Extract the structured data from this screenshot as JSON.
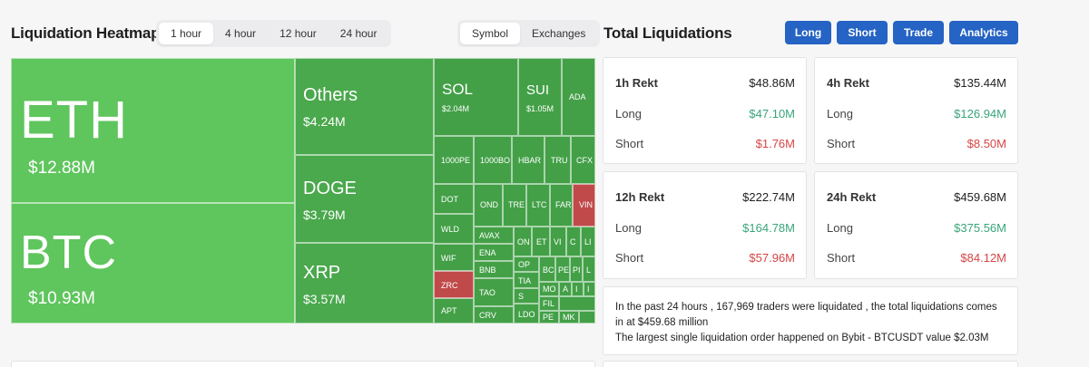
{
  "heatmap": {
    "title": "Liquidation Heatmap",
    "time_options": [
      "1 hour",
      "4 hour",
      "12 hour",
      "24 hour"
    ],
    "active_time": "1 hour",
    "view_options": [
      "Symbol",
      "Exchanges"
    ],
    "active_view": "Symbol",
    "tiles": {
      "eth": {
        "symbol": "ETH",
        "value": "$12.88M",
        "color": "#5fc55d"
      },
      "btc": {
        "symbol": "BTC",
        "value": "$10.93M",
        "color": "#5fc55d"
      },
      "others": {
        "symbol": "Others",
        "value": "$4.24M"
      },
      "doge": {
        "symbol": "DOGE",
        "value": "$3.79M"
      },
      "xrp": {
        "symbol": "XRP",
        "value": "$3.57M"
      },
      "sol": {
        "symbol": "SOL",
        "value": "$2.04M"
      },
      "sui": {
        "symbol": "SUI",
        "value": "$1.05M"
      },
      "ada": {
        "symbol": "ADA"
      },
      "pepe": {
        "symbol": "1000PE"
      },
      "bonk": {
        "symbol": "1000BO"
      },
      "hbar": {
        "symbol": "HBAR"
      },
      "trump": {
        "symbol": "TRU"
      },
      "cfx": {
        "symbol": "CFX"
      },
      "dot": {
        "symbol": "DOT"
      },
      "ondo": {
        "symbol": "OND"
      },
      "tre": {
        "symbol": "TRE"
      },
      "ltc": {
        "symbol": "LTC"
      },
      "far": {
        "symbol": "FAR"
      },
      "vin": {
        "symbol": "VIN"
      },
      "wld": {
        "symbol": "WLD"
      },
      "avax": {
        "symbol": "AVAX"
      },
      "on": {
        "symbol": "ON"
      },
      "et": {
        "symbol": "ET"
      },
      "vi": {
        "symbol": "VI"
      },
      "c1": {
        "symbol": "C"
      },
      "li": {
        "symbol": "LI"
      },
      "wif": {
        "symbol": "WIF"
      },
      "ena": {
        "symbol": "ENA"
      },
      "op": {
        "symbol": "OP"
      },
      "bc": {
        "symbol": "BC"
      },
      "pe": {
        "symbol": "PE"
      },
      "pi": {
        "symbol": "PI"
      },
      "l1": {
        "symbol": "L"
      },
      "zrc": {
        "symbol": "ZRC"
      },
      "bnb": {
        "symbol": "BNB"
      },
      "tia": {
        "symbol": "TIA"
      },
      "mo": {
        "symbol": "MO"
      },
      "a1": {
        "symbol": "A"
      },
      "i1": {
        "symbol": "I"
      },
      "i2": {
        "symbol": "I"
      },
      "tao": {
        "symbol": "TAO"
      },
      "s1": {
        "symbol": "S"
      },
      "fil": {
        "symbol": "FIL"
      },
      "apt": {
        "symbol": "APT"
      },
      "crv": {
        "symbol": "CRV"
      },
      "ldo": {
        "symbol": "LDO"
      },
      "pe2": {
        "symbol": "PE"
      },
      "mk": {
        "symbol": "MK"
      }
    }
  },
  "totals": {
    "title": "Total Liquidations",
    "buttons": [
      "Long",
      "Short",
      "Trade",
      "Analytics"
    ],
    "accent": "#2563c4",
    "long_color": "#3aa57a",
    "short_color": "#d64545",
    "cards": [
      {
        "label": "1h Rekt",
        "total": "$48.86M",
        "long_label": "Long",
        "long": "$47.10M",
        "short_label": "Short",
        "short": "$1.76M"
      },
      {
        "label": "4h Rekt",
        "total": "$135.44M",
        "long_label": "Long",
        "long": "$126.94M",
        "short_label": "Short",
        "short": "$8.50M"
      },
      {
        "label": "12h Rekt",
        "total": "$222.74M",
        "long_label": "Long",
        "long": "$164.78M",
        "short_label": "Short",
        "short": "$57.96M"
      },
      {
        "label": "24h Rekt",
        "total": "$459.68M",
        "long_label": "Long",
        "long": "$375.56M",
        "short_label": "Short",
        "short": "$84.12M"
      }
    ],
    "summary_line1": "In the past 24 hours , 167,969 traders were liquidated , the total liquidations comes in at $459.68 million",
    "summary_line2": "The largest single liquidation order happened on Bybit - BTCUSDT value $2.03M"
  }
}
